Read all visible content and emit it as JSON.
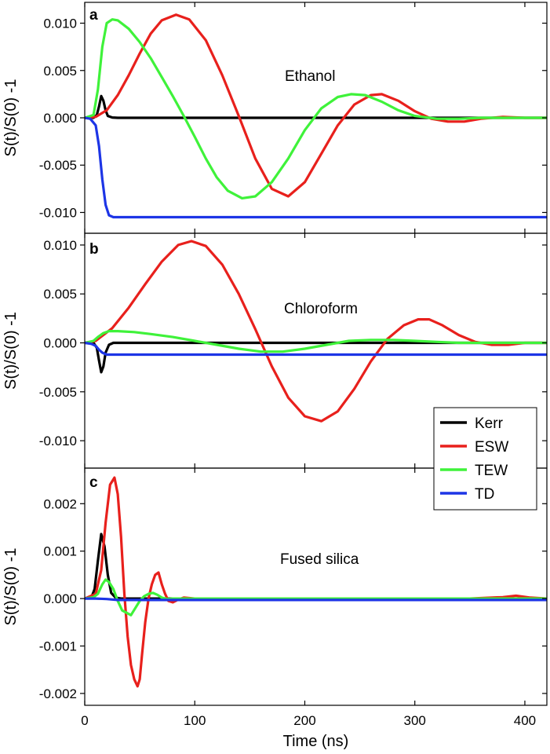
{
  "colors": {
    "Kerr": "#000000",
    "ESW": "#e8201c",
    "TEW": "#3ff23a",
    "TD": "#1d35e6"
  },
  "chart_data": [
    {
      "type": "line",
      "panel_letter": "a",
      "annotation": "Ethanol",
      "ylabel": "S(t)/S(0) -1",
      "xlabel": "",
      "xlim": [
        0,
        420
      ],
      "ylim": [
        -0.0122,
        0.0122
      ],
      "yticks": [
        0.01,
        0.005,
        0.0,
        -0.005,
        -0.01
      ],
      "ytick_labels": [
        "0.010",
        "0.005",
        "0.000",
        "-0.005",
        "-0.010"
      ],
      "grid": false,
      "series": [
        {
          "name": "Kerr",
          "x": [
            0,
            8,
            11,
            13,
            15,
            17,
            19,
            21,
            25,
            30,
            420
          ],
          "y": [
            0,
            0,
            0.0003,
            0.0012,
            0.0023,
            0.0018,
            0.0008,
            0.0002,
            3e-05,
            0,
            0
          ]
        },
        {
          "name": "ESW",
          "x": [
            0,
            10,
            20,
            30,
            40,
            50,
            60,
            70,
            83,
            95,
            110,
            125,
            140,
            155,
            170,
            185,
            200,
            215,
            230,
            245,
            260,
            270,
            285,
            300,
            315,
            330,
            345,
            360,
            380,
            400,
            420
          ],
          "y": [
            0,
            0.0001,
            0.0008,
            0.0024,
            0.0045,
            0.0068,
            0.0089,
            0.0103,
            0.0109,
            0.0104,
            0.0082,
            0.0045,
            0.0002,
            -0.0043,
            -0.0075,
            -0.0083,
            -0.0068,
            -0.0038,
            -0.0008,
            0.0014,
            0.0024,
            0.0025,
            0.0018,
            0.0007,
            -0.0001,
            -0.0004,
            -0.0004,
            -0.0001,
            0.0001,
            0,
            0
          ]
        },
        {
          "name": "TEW",
          "x": [
            0,
            8,
            12,
            16,
            20,
            25,
            30,
            40,
            50,
            60,
            70,
            80,
            90,
            100,
            110,
            120,
            130,
            143,
            155,
            170,
            185,
            200,
            215,
            230,
            242,
            255,
            270,
            285,
            300,
            320,
            340,
            360,
            380,
            400,
            420
          ],
          "y": [
            0,
            0.0003,
            0.003,
            0.0075,
            0.01,
            0.0104,
            0.0103,
            0.0094,
            0.008,
            0.0063,
            0.0043,
            0.0023,
            0.0002,
            -0.002,
            -0.0043,
            -0.0063,
            -0.0077,
            -0.0085,
            -0.0083,
            -0.0068,
            -0.0043,
            -0.0013,
            0.001,
            0.0022,
            0.0025,
            0.0024,
            0.0017,
            0.0008,
            0.0002,
            -0.0001,
            -0.0001,
            0,
            0,
            0,
            0
          ]
        },
        {
          "name": "TD",
          "x": [
            0,
            5,
            10,
            13,
            16,
            19,
            22,
            26,
            30,
            420
          ],
          "y": [
            0,
            -0.0001,
            -0.0008,
            -0.003,
            -0.0065,
            -0.0092,
            -0.0103,
            -0.0105,
            -0.0105,
            -0.0105
          ]
        }
      ]
    },
    {
      "type": "line",
      "panel_letter": "b",
      "annotation": "Chloroform",
      "ylabel": "S(t)/S(0) -1",
      "xlabel": "",
      "xlim": [
        0,
        420
      ],
      "ylim": [
        -0.0128,
        0.0112
      ],
      "yticks": [
        0.01,
        0.005,
        0.0,
        -0.005,
        -0.01
      ],
      "ytick_labels": [
        "0.010",
        "0.005",
        "0.000",
        "-0.005",
        "-0.010"
      ],
      "grid": false,
      "series": [
        {
          "name": "Kerr",
          "x": [
            0,
            8,
            11,
            13,
            15,
            17,
            19,
            22,
            26,
            420
          ],
          "y": [
            0,
            0,
            -0.0005,
            -0.0018,
            -0.003,
            -0.0024,
            -0.001,
            -0.0002,
            0,
            0
          ]
        },
        {
          "name": "ESW",
          "x": [
            0,
            10,
            25,
            40,
            55,
            70,
            85,
            97,
            110,
            125,
            140,
            155,
            170,
            185,
            200,
            215,
            230,
            245,
            260,
            275,
            290,
            303,
            313,
            325,
            340,
            355,
            370,
            385,
            400,
            420
          ],
          "y": [
            0,
            0.0002,
            0.0015,
            0.0036,
            0.006,
            0.0083,
            0.01,
            0.0104,
            0.0099,
            0.008,
            0.005,
            0.0014,
            -0.0024,
            -0.0056,
            -0.0075,
            -0.008,
            -0.007,
            -0.0047,
            -0.0019,
            0.0004,
            0.0018,
            0.0024,
            0.0024,
            0.0018,
            0.0008,
            0.0001,
            -0.0002,
            -0.0002,
            0,
            0
          ]
        },
        {
          "name": "TEW",
          "x": [
            0,
            8,
            12,
            17,
            22,
            30,
            45,
            60,
            80,
            100,
            120,
            140,
            160,
            180,
            200,
            220,
            240,
            260,
            280,
            300,
            320,
            340,
            360,
            380,
            400,
            420
          ],
          "y": [
            0,
            0.0002,
            0.0006,
            0.001,
            0.0012,
            0.0012,
            0.0011,
            0.0009,
            0.0006,
            0.0002,
            -0.0002,
            -0.0006,
            -0.0009,
            -0.0009,
            -0.0006,
            -0.0002,
            0.0002,
            0.0003,
            0.0003,
            0.0002,
            0.0001,
            0,
            0,
            0,
            0,
            0
          ]
        },
        {
          "name": "TD",
          "x": [
            0,
            6,
            10,
            13,
            16,
            20,
            25,
            30,
            420
          ],
          "y": [
            0,
            -0.0001,
            -0.0003,
            -0.0007,
            -0.001,
            -0.0012,
            -0.0012,
            -0.0012,
            -0.0012
          ]
        }
      ]
    },
    {
      "type": "line",
      "panel_letter": "c",
      "annotation": "Fused silica",
      "ylabel": "S(t)/S(0) -1",
      "xlabel": "Time (ns)",
      "xlim": [
        0,
        420
      ],
      "ylim": [
        -0.00225,
        0.00275
      ],
      "yticks": [
        0.002,
        0.001,
        0.0,
        -0.001,
        -0.002
      ],
      "ytick_labels": [
        "0.002",
        "0.001",
        "0.000",
        "-0.001",
        "-0.002"
      ],
      "xticks": [
        0,
        100,
        200,
        300,
        400
      ],
      "xtick_labels": [
        "0",
        "100",
        "200",
        "300",
        "400"
      ],
      "grid": false,
      "legend": {
        "position": "right",
        "entries": [
          "Kerr",
          "ESW",
          "TEW",
          "TD"
        ]
      },
      "series": [
        {
          "name": "Kerr",
          "x": [
            0,
            6,
            9,
            12,
            15,
            18,
            21,
            24,
            28,
            33,
            420
          ],
          "y": [
            0,
            2e-05,
            0.0002,
            0.0008,
            0.00136,
            0.0011,
            0.0005,
            0.00012,
            2e-05,
            0,
            0
          ]
        },
        {
          "name": "ESW",
          "x": [
            0,
            10,
            15,
            19,
            23,
            27,
            30,
            33,
            36,
            39,
            42,
            45,
            48,
            50,
            52,
            55,
            58,
            61,
            64,
            67,
            70,
            73,
            76,
            80,
            85,
            90,
            100,
            110,
            150,
            200,
            250,
            300,
            350,
            380,
            392,
            405,
            420
          ],
          "y": [
            0,
            0.0001,
            0.0006,
            0.0016,
            0.0024,
            0.00255,
            0.0022,
            0.0013,
            0.0001,
            -0.0008,
            -0.0014,
            -0.0017,
            -0.00185,
            -0.0017,
            -0.0012,
            -0.0005,
            0,
            0.0003,
            0.0005,
            0.00055,
            0.0003,
            0.0001,
            -5e-05,
            -8e-05,
            -2e-05,
            2e-05,
            0,
            0,
            0,
            0,
            0,
            0,
            0,
            3e-05,
            6e-05,
            2e-05,
            0
          ]
        },
        {
          "name": "TEW",
          "x": [
            0,
            8,
            12,
            16,
            19,
            22,
            26,
            30,
            34,
            38,
            42,
            46,
            50,
            54,
            58,
            62,
            66,
            70,
            75,
            80,
            90,
            420
          ],
          "y": [
            0,
            3e-05,
            0.0001,
            0.0003,
            0.0004,
            0.00035,
            0.0002,
            -5e-05,
            -0.00025,
            -0.0003,
            -0.00035,
            -0.0002,
            -5e-05,
            5e-05,
            0.0001,
            0.00012,
            8e-05,
            2e-05,
            -1e-05,
            0,
            0,
            0
          ]
        },
        {
          "name": "TD",
          "x": [
            0,
            10,
            20,
            30,
            420
          ],
          "y": [
            0,
            0,
            -1e-05,
            -3e-05,
            -3e-05
          ]
        }
      ]
    }
  ]
}
